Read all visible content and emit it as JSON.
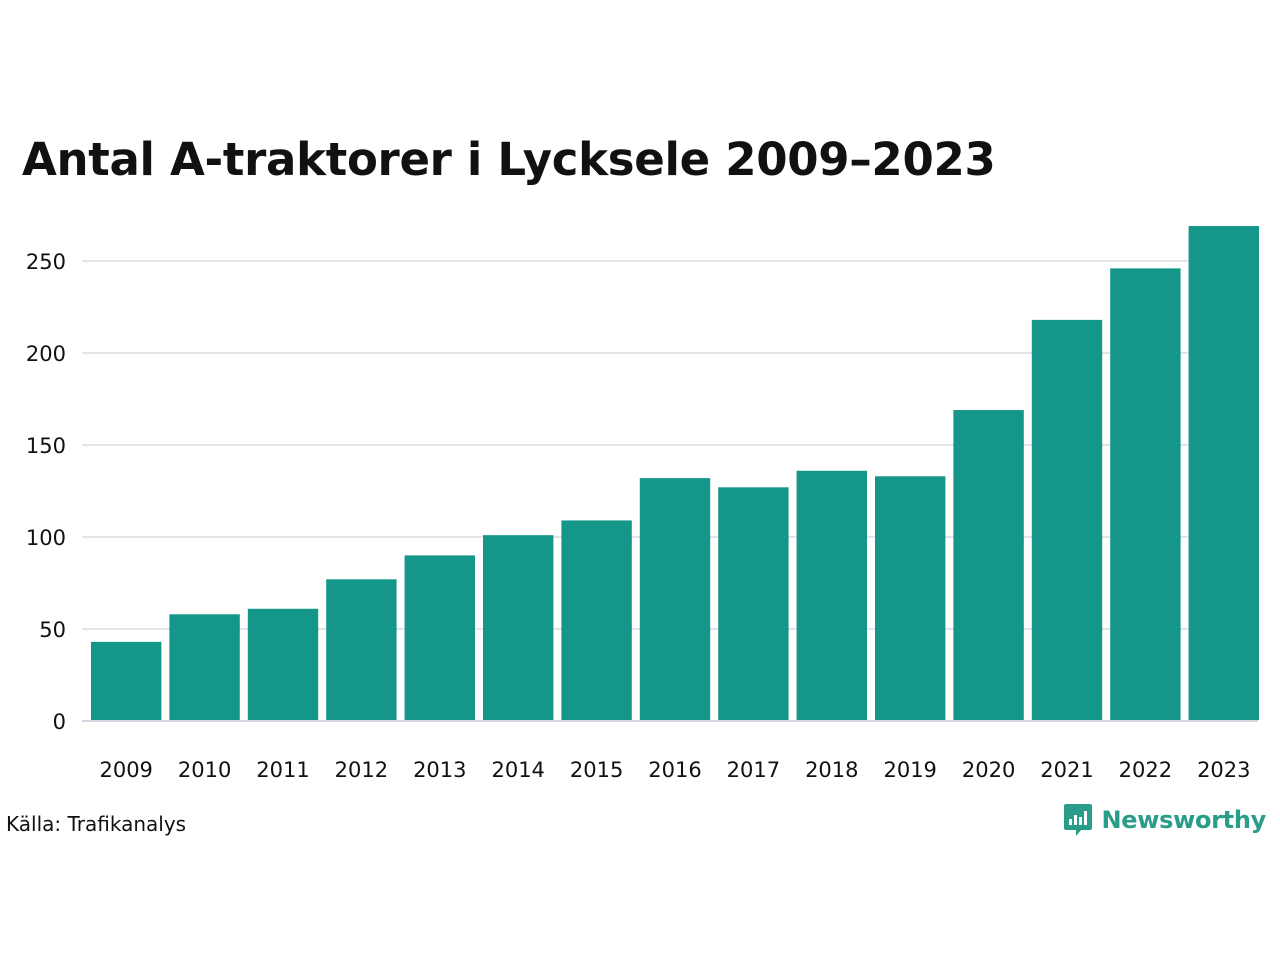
{
  "title": "Antal A-traktorer i Lycksele 2009–2023",
  "source": "Källa: Trafikanalys",
  "brand": {
    "name": "Newsworthy",
    "logo_icon": "newsworthy-logo-icon"
  },
  "colors": {
    "bar": "#149688",
    "grid": "#e3e3ea",
    "axis": "#d8d8e2",
    "text": "#111111",
    "brand": "#2a9d8a"
  },
  "chart_data": {
    "type": "bar",
    "title": "Antal A-traktorer i Lycksele 2009–2023",
    "xlabel": "",
    "ylabel": "",
    "categories": [
      "2009",
      "2010",
      "2011",
      "2012",
      "2013",
      "2014",
      "2015",
      "2016",
      "2017",
      "2018",
      "2019",
      "2020",
      "2021",
      "2022",
      "2023"
    ],
    "values": [
      43,
      58,
      61,
      77,
      90,
      101,
      109,
      132,
      127,
      136,
      133,
      169,
      218,
      246,
      269
    ],
    "ylim": [
      0,
      270
    ],
    "yticks": [
      0,
      50,
      100,
      150,
      200,
      250
    ],
    "grid": true,
    "legend": "none"
  }
}
